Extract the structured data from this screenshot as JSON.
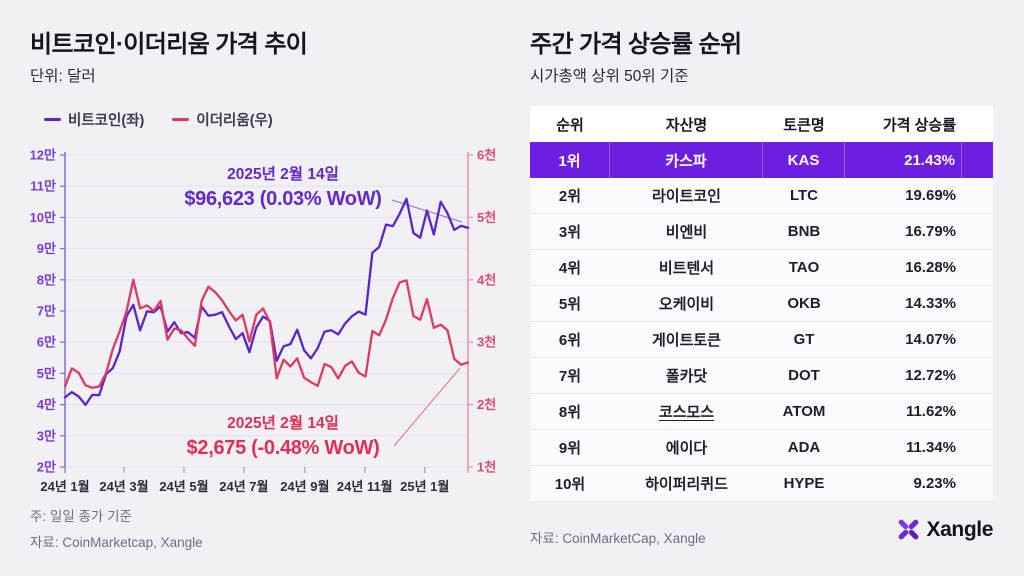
{
  "left_panel": {
    "title": "비트코인·이더리움 가격 추이",
    "subtitle": "단위: 달러",
    "legend": [
      {
        "label": "비트코인(좌)",
        "color": "#5B24CB"
      },
      {
        "label": "이더리움(우)",
        "color": "#DC3A5E"
      }
    ],
    "note": "주: 일일 종가 기준",
    "source": "자료: CoinMarketcap, Xangle"
  },
  "chart_data": {
    "type": "line",
    "x_unit": "weekly, 2024-01-01 ~ 2025-02-14",
    "series": [
      {
        "name": "비트코인(좌)",
        "axis": "left",
        "color": "#5B24CB",
        "values": [
          42300,
          44000,
          42600,
          39900,
          43100,
          43000,
          49700,
          51700,
          57000,
          68300,
          72000,
          63800,
          69900,
          69600,
          71500,
          63400,
          66400,
          62900,
          63200,
          61400,
          71400,
          68500,
          68800,
          69600,
          65100,
          61000,
          62900,
          56800,
          64700,
          68200,
          66800,
          54000,
          58700,
          59400,
          64000,
          57400,
          54800,
          58100,
          63400,
          63800,
          62500,
          66000,
          68300,
          69800,
          68800,
          88700,
          90500,
          97700,
          97200,
          101200,
          106000,
          95000,
          93500,
          102200,
          94500,
          105000,
          101300,
          96000,
          97300,
          96623
        ]
      },
      {
        "name": "이더리움(우)",
        "axis": "right",
        "color": "#DC3A5E",
        "values": [
          2290,
          2580,
          2510,
          2310,
          2270,
          2290,
          2500,
          2890,
          3170,
          3490,
          4000,
          3540,
          3590,
          3500,
          3660,
          3040,
          3220,
          3190,
          3060,
          2940,
          3660,
          3890,
          3800,
          3670,
          3500,
          3350,
          3440,
          3010,
          3440,
          3540,
          3320,
          2420,
          2720,
          2610,
          2740,
          2430,
          2360,
          2300,
          2650,
          2600,
          2420,
          2620,
          2690,
          2510,
          2450,
          3180,
          3110,
          3360,
          3710,
          3960,
          3990,
          3420,
          3360,
          3690,
          3230,
          3280,
          3190,
          2730,
          2640,
          2675
        ]
      }
    ],
    "left_axis": {
      "min": 20000,
      "max": 120000,
      "ticks": [
        {
          "v": 120000,
          "label": "12만"
        },
        {
          "v": 110000,
          "label": "11만"
        },
        {
          "v": 100000,
          "label": "10만"
        },
        {
          "v": 90000,
          "label": "9만"
        },
        {
          "v": 80000,
          "label": "8만"
        },
        {
          "v": 70000,
          "label": "7만"
        },
        {
          "v": 60000,
          "label": "6만"
        },
        {
          "v": 50000,
          "label": "5만"
        },
        {
          "v": 40000,
          "label": "4만"
        },
        {
          "v": 30000,
          "label": "3만"
        },
        {
          "v": 20000,
          "label": "2만"
        }
      ]
    },
    "right_axis": {
      "min": 1000,
      "max": 6000,
      "ticks": [
        {
          "v": 6000,
          "label": "6천"
        },
        {
          "v": 5000,
          "label": "5천"
        },
        {
          "v": 4000,
          "label": "4천"
        },
        {
          "v": 3000,
          "label": "3천"
        },
        {
          "v": 2000,
          "label": "2천"
        },
        {
          "v": 1000,
          "label": "1천"
        }
      ]
    },
    "x_axis": {
      "span_days": 410,
      "ticks": [
        {
          "label": "24년 1월",
          "day": 0
        },
        {
          "label": "24년 3월",
          "day": 60
        },
        {
          "label": "24년 5월",
          "day": 121
        },
        {
          "label": "24년 7월",
          "day": 182
        },
        {
          "label": "24년 9월",
          "day": 244
        },
        {
          "label": "24년 11월",
          "day": 305
        },
        {
          "label": "25년 1월",
          "day": 366
        }
      ]
    },
    "annotations": {
      "btc": {
        "date": "2025년 2월 14일",
        "value": "$96,623 (0.03% WoW)"
      },
      "eth": {
        "date": "2025년 2월 14일",
        "value": "$2,675 (-0.48% WoW)"
      }
    }
  },
  "right_panel": {
    "title": "주간 가격 상승률 순위",
    "subtitle": "시가총액 상위 50위 기준",
    "highlight_color": "#6C1FE0",
    "table": {
      "columns": [
        "순위",
        "자산명",
        "토큰명",
        "가격 상승률"
      ],
      "rows": [
        {
          "rank": "1위",
          "asset": "카스파",
          "token": "KAS",
          "change": "21.43%",
          "highlight": true
        },
        {
          "rank": "2위",
          "asset": "라이트코인",
          "token": "LTC",
          "change": "19.69%"
        },
        {
          "rank": "3위",
          "asset": "비엔비",
          "token": "BNB",
          "change": "16.79%"
        },
        {
          "rank": "4위",
          "asset": "비트텐서",
          "token": "TAO",
          "change": "16.28%"
        },
        {
          "rank": "5위",
          "asset": "오케이비",
          "token": "OKB",
          "change": "14.33%"
        },
        {
          "rank": "6위",
          "asset": "게이트토큰",
          "token": "GT",
          "change": "14.07%"
        },
        {
          "rank": "7위",
          "asset": "폴카닷",
          "token": "DOT",
          "change": "12.72%"
        },
        {
          "rank": "8위",
          "asset": "코스모스",
          "token": "ATOM",
          "change": "11.62%",
          "underline": true
        },
        {
          "rank": "9위",
          "asset": "에이다",
          "token": "ADA",
          "change": "11.34%"
        },
        {
          "rank": "10위",
          "asset": "하이퍼리퀴드",
          "token": "HYPE",
          "change": "9.23%"
        }
      ]
    },
    "source": "자료: CoinMarketCap, Xangle",
    "logo_text": "Xangle"
  }
}
